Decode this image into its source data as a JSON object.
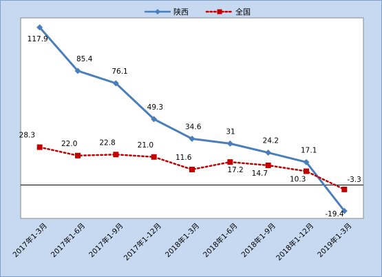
{
  "chart_data": {
    "type": "line",
    "categories": [
      "2017年1-3月",
      "2017年1-6月",
      "2017年1-9月",
      "2017年1-12月",
      "2018年1-3月",
      "2018年1-6月",
      "2018年1-9月",
      "2018年1-12月",
      "2019年1-3月"
    ],
    "series": [
      {
        "name": "陕西",
        "values": [
          117.9,
          85.4,
          76.1,
          49.3,
          34.6,
          31,
          24.2,
          17.1,
          -19.4
        ],
        "labels": [
          "117.9",
          "85.4",
          "76.1",
          "49.3",
          "34.6",
          "31",
          "24.2",
          "17.1",
          "-19.4"
        ],
        "color": "#4a7ebb",
        "line_style": "solid",
        "marker": "diamond"
      },
      {
        "name": "全国",
        "values": [
          28.3,
          22.0,
          22.8,
          21.0,
          11.6,
          17.2,
          14.7,
          10.3,
          -3.3
        ],
        "labels": [
          "28.3",
          "22.0",
          "22.8",
          "21.0",
          "11.6",
          "17.2",
          "14.7",
          "10.3",
          "-3.3"
        ],
        "color": "#c00000",
        "line_style": "dotted",
        "marker": "square"
      }
    ],
    "title": "",
    "xlabel": "",
    "ylabel": "",
    "ylim": [
      -25,
      125
    ],
    "zero_line": true,
    "grid": false,
    "legend_position": "top"
  }
}
